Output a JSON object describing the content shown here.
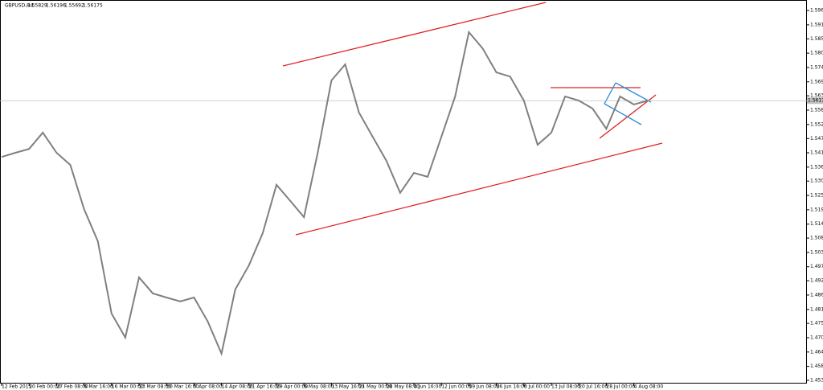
{
  "chart_data": {
    "type": "line",
    "symbol": "GBPUSD,H4",
    "ohlc": [
      1.55829,
      1.56196,
      1.55692,
      1.56175
    ],
    "current_price": 1.56175,
    "categories": [
      "12 Feb 2015",
      null,
      "20 Feb 00:00",
      null,
      "27 Feb 08:00",
      null,
      "6 Mar 16:00",
      null,
      "16 Mar 00:00",
      null,
      "23 Mar 08:00",
      null,
      "30 Mar 16:00",
      null,
      "7 Apr 08:00",
      null,
      "14 Apr 08:00",
      null,
      "21 Apr 16:00",
      null,
      "29 Apr 00:00",
      null,
      "6 May 08:00",
      null,
      "13 May 16:00",
      null,
      "21 May 00:00",
      null,
      "28 May 08:00",
      null,
      "4 Jun 16:00",
      null,
      "12 Jun 00:00",
      null,
      "19 Jun 08:00",
      null,
      "26 Jun 16:00",
      null,
      "6 Jul 00:00",
      null,
      "13 Jul 08:00",
      null,
      "20 Jul 16:00",
      null,
      "28 Jul 00:00",
      null,
      "4 Aug 08:00",
      null
    ],
    "series": [
      {
        "name": "GBPUSD",
        "color": "#808080",
        "values": [
          1.54,
          1.5416,
          1.5431,
          1.5494,
          1.5416,
          1.5369,
          1.5198,
          1.5074,
          1.4794,
          1.4701,
          1.4934,
          1.4872,
          1.4856,
          1.4841,
          1.4856,
          1.4763,
          1.4639,
          1.4887,
          1.4981,
          1.5105,
          1.5292,
          1.523,
          1.5167,
          1.5416,
          1.5696,
          1.5758,
          1.5572,
          1.5478,
          1.5385,
          1.5261,
          1.5338,
          1.5323,
          1.5478,
          1.5634,
          1.5883,
          1.582,
          1.5727,
          1.5711,
          1.5618,
          1.5447,
          1.5494,
          1.5634,
          1.5618,
          1.5587,
          1.5509,
          1.5634,
          1.5603,
          1.56175
        ]
      }
    ],
    "ylim": [
      1.4523,
      1.6001
    ],
    "yticks": [
      1.59665,
      {
        "value": 1.5911,
        "label": "1.59110"
      },
      {
        "value": 1.5857,
        "label": "1.58570"
      },
      1.58015,
      {
        "value": 1.5746,
        "label": "1.57460"
      },
      1.56905,
      1.56365,
      {
        "value": 1.5581,
        "label": "1.55810"
      },
      1.55255,
      {
        "value": 1.5471,
        "label": "1.54710"
      },
      {
        "value": 1.5416,
        "label": "1.54160"
      },
      1.53605,
      1.53065,
      {
        "value": 1.5251,
        "label": "1.52510"
      },
      1.51955,
      {
        "value": 1.514,
        "label": "1.51400"
      },
      {
        "value": 1.5086,
        "label": "1.50860"
      },
      1.50305,
      {
        "value": 1.4975,
        "label": "1.49750"
      },
      {
        "value": 1.4921,
        "label": "1.49210"
      },
      1.48655,
      {
        "value": 1.481,
        "label": "1.48100"
      },
      {
        "value": 1.4756,
        "label": "1.47560"
      },
      1.47005,
      {
        "value": 1.4645,
        "label": "1.46450"
      },
      1.45895,
      1.45355
    ]
  }
}
